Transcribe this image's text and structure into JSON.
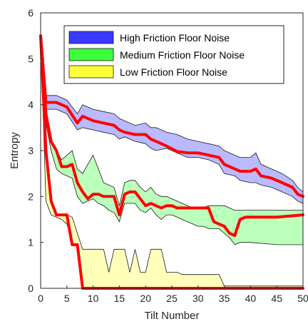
{
  "chart_data": {
    "type": "area",
    "xlabel": "Tilt Number",
    "ylabel": "Entropy",
    "xlim": [
      0,
      50
    ],
    "ylim": [
      0,
      6
    ],
    "xticks": [
      0,
      5,
      10,
      15,
      20,
      25,
      30,
      35,
      40,
      45,
      50
    ],
    "yticks": [
      0,
      1,
      2,
      3,
      4,
      5,
      6
    ],
    "grid": false,
    "legend_position": "top-right",
    "line_color": "#ff0000",
    "series": [
      {
        "name": "High Friction Floor Noise",
        "fill_color": "#3a3aff",
        "x": [
          0,
          1,
          2,
          3,
          5,
          7,
          8,
          10,
          12,
          14,
          15,
          16,
          18,
          20,
          21,
          22,
          24,
          26,
          28,
          30,
          32,
          34,
          35,
          37,
          38,
          40,
          41,
          42,
          44,
          46,
          48,
          49,
          50
        ],
        "upper": [
          5.5,
          4.2,
          4.2,
          4.2,
          4.1,
          3.8,
          4.0,
          3.9,
          3.85,
          3.8,
          3.7,
          3.65,
          3.55,
          3.6,
          3.5,
          3.5,
          3.4,
          3.35,
          3.25,
          3.2,
          3.15,
          3.1,
          3.0,
          2.9,
          2.85,
          2.85,
          2.95,
          2.7,
          2.6,
          2.5,
          2.35,
          2.2,
          2.1
        ],
        "lower": [
          5.5,
          3.9,
          3.9,
          3.9,
          3.8,
          3.45,
          3.5,
          3.45,
          3.4,
          3.35,
          3.25,
          3.3,
          3.2,
          3.15,
          3.05,
          3.0,
          3.05,
          2.95,
          2.85,
          2.85,
          2.8,
          2.7,
          2.5,
          2.45,
          2.35,
          2.3,
          2.3,
          2.25,
          2.2,
          2.1,
          2.0,
          1.9,
          1.85
        ],
        "mean": [
          5.5,
          4.05,
          4.05,
          4.05,
          3.95,
          3.6,
          3.75,
          3.65,
          3.6,
          3.55,
          3.45,
          3.4,
          3.35,
          3.35,
          3.25,
          3.2,
          3.1,
          2.98,
          2.95,
          2.95,
          2.9,
          2.85,
          2.7,
          2.6,
          2.55,
          2.55,
          2.6,
          2.45,
          2.4,
          2.3,
          2.2,
          2.05,
          2.0
        ]
      },
      {
        "name": "Medium Friction Floor Noise",
        "fill_color": "#3aff3a",
        "x": [
          0,
          1,
          2,
          3,
          4,
          5,
          6,
          7,
          8,
          9,
          10,
          11,
          12,
          13,
          14,
          15,
          16,
          17,
          18,
          19,
          20,
          21,
          22,
          23,
          24,
          25,
          26,
          27,
          28,
          29,
          30,
          31,
          32,
          33,
          34,
          35,
          36,
          37,
          38,
          39,
          40,
          45,
          50
        ],
        "upper": [
          5.5,
          3.9,
          3.2,
          3.0,
          2.8,
          2.9,
          3.0,
          2.6,
          2.5,
          2.7,
          2.9,
          2.6,
          2.3,
          2.25,
          2.2,
          1.8,
          2.3,
          2.35,
          2.35,
          2.2,
          2.1,
          2.2,
          2.05,
          2.0,
          2.0,
          1.95,
          1.9,
          1.85,
          1.8,
          1.75,
          1.75,
          1.75,
          1.8,
          1.8,
          1.8,
          1.8,
          1.75,
          1.7,
          1.7,
          1.7,
          1.7,
          1.7,
          1.7
        ],
        "lower": [
          5.5,
          3.6,
          3.0,
          2.6,
          2.5,
          2.45,
          2.4,
          2.0,
          1.85,
          1.9,
          1.95,
          1.85,
          1.8,
          1.7,
          1.65,
          1.45,
          1.85,
          1.85,
          1.85,
          1.7,
          1.65,
          1.75,
          1.6,
          1.5,
          1.6,
          1.6,
          1.55,
          1.5,
          1.45,
          1.4,
          1.35,
          1.35,
          1.3,
          1.3,
          1.3,
          1.2,
          1.1,
          0.95,
          1.0,
          1.0,
          1.0,
          0.95,
          0.95
        ],
        "mean": [
          5.5,
          3.8,
          3.2,
          3.0,
          2.65,
          2.65,
          2.7,
          2.3,
          2.1,
          1.95,
          2.05,
          2.05,
          2.0,
          2.0,
          2.0,
          1.6,
          2.05,
          2.1,
          2.1,
          1.95,
          1.8,
          1.85,
          1.8,
          1.75,
          1.8,
          1.8,
          1.75,
          1.75,
          1.75,
          1.75,
          1.75,
          1.75,
          1.75,
          1.45,
          1.4,
          1.35,
          1.2,
          1.15,
          1.5,
          1.55,
          1.55,
          1.55,
          1.6
        ]
      },
      {
        "name": "Low Friction Floor Noise",
        "fill_color": "#ffff3a",
        "x": [
          0,
          1,
          2,
          3,
          4,
          5,
          6,
          7,
          8,
          9,
          10,
          11,
          12,
          13,
          14,
          15,
          16,
          17,
          18,
          19,
          20,
          21,
          22,
          23,
          24,
          25,
          26,
          27,
          28,
          29,
          30,
          31,
          32,
          33,
          34,
          35,
          36,
          37,
          38,
          39,
          40,
          41,
          42,
          43,
          44,
          45,
          46,
          47,
          48,
          49,
          50
        ],
        "upper": [
          5.5,
          3.0,
          1.9,
          1.6,
          1.6,
          1.6,
          1.55,
          1.2,
          0.85,
          0.85,
          0.85,
          0.85,
          0.85,
          0.35,
          0.85,
          0.85,
          0.85,
          0.35,
          0.85,
          0.35,
          0.35,
          0.85,
          0.85,
          0.85,
          0.35,
          0.35,
          0.35,
          0.3,
          0.3,
          0.3,
          0.3,
          0.3,
          0.3,
          0.3,
          0.3,
          0.05,
          0.05,
          0.05,
          0.05,
          0.05,
          0.05,
          0.05,
          0.05,
          0.05,
          0.05,
          0.05,
          0.05,
          0.05,
          0.05,
          0.05,
          0.05
        ],
        "lower": [
          5.5,
          1.9,
          1.6,
          1.55,
          1.5,
          1.4,
          1.0,
          0.9,
          0.0,
          0.0,
          0.0,
          0.0,
          0.0,
          0.0,
          0.0,
          0.0,
          0.0,
          0.0,
          0.0,
          0.0,
          0.0,
          0.0,
          0.0,
          0.0,
          0.0,
          0.0,
          0.0,
          0.0,
          0.0,
          0.0,
          0.0,
          0.0,
          0.0,
          0.0,
          0.0,
          0.0,
          0.0,
          0.0,
          0.0,
          0.0,
          0.0,
          0.0,
          0.0,
          0.0,
          0.0,
          0.0,
          0.0,
          0.0,
          0.0,
          0.0,
          0.0
        ],
        "mean": [
          5.5,
          3.0,
          1.9,
          1.6,
          1.6,
          1.6,
          0.95,
          0.95,
          0.0,
          0.0,
          0.0,
          0.0,
          0.0,
          0.0,
          0.0,
          0.0,
          0.0,
          0.0,
          0.0,
          0.0,
          0.0,
          0.0,
          0.0,
          0.0,
          0.0,
          0.0,
          0.0,
          0.0,
          0.0,
          0.0,
          0.0,
          0.0,
          0.0,
          0.0,
          0.0,
          0.0,
          0.0,
          0.0,
          0.0,
          0.0,
          0.0,
          0.0,
          0.0,
          0.0,
          0.0,
          0.0,
          0.0,
          0.0,
          0.0,
          0.0,
          0.0
        ]
      }
    ]
  }
}
